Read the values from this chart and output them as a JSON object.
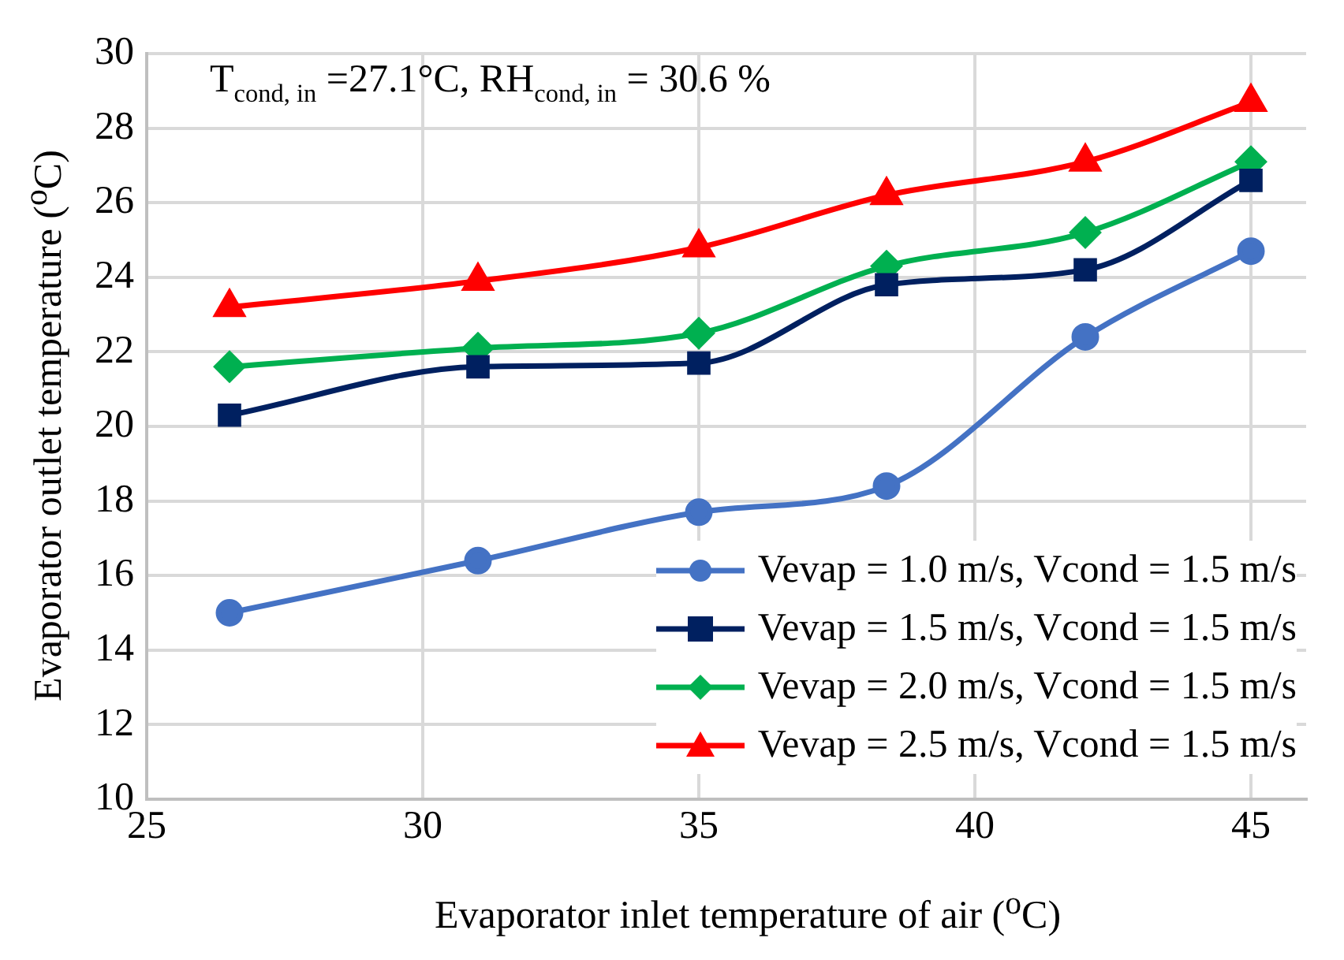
{
  "chart_data": {
    "type": "line",
    "xlabel": "Evaporator inlet temperature of air ($^{o}$C)",
    "ylabel": "Evaporator outlet temperature ($^{o}$C)",
    "annotations": [
      "T$_{cond, in}$ =27.1°C, RH$_{cond, in}$ = 30.6 %"
    ],
    "x": [
      26.5,
      31,
      35,
      38.4,
      42,
      45
    ],
    "series": [
      {
        "name": "Vevap = 1.0 m/s, Vcond = 1.5 m/s",
        "color": "#4472c4",
        "marker": "circle",
        "values": [
          15.0,
          16.4,
          17.7,
          18.4,
          22.4,
          24.7
        ]
      },
      {
        "name": "Vevap = 1.5 m/s, Vcond = 1.5 m/s",
        "color": "#002060",
        "marker": "square",
        "values": [
          20.3,
          21.6,
          21.7,
          23.8,
          24.2,
          26.6
        ]
      },
      {
        "name": "Vevap = 2.0 m/s, Vcond = 1.5 m/s",
        "color": "#00b050",
        "marker": "diamond",
        "values": [
          21.6,
          22.1,
          22.5,
          24.3,
          25.2,
          27.1
        ]
      },
      {
        "name": "Vevap = 2.5 m/s, Vcond = 1.5 m/s",
        "color": "#ff0000",
        "marker": "triangle",
        "values": [
          23.2,
          23.9,
          24.8,
          26.2,
          27.1,
          28.7
        ]
      }
    ],
    "xlim": [
      25,
      46
    ],
    "xticks": [
      25,
      30,
      35,
      40,
      45
    ],
    "ylim": [
      10,
      30
    ],
    "yticks": [
      10,
      12,
      14,
      16,
      18,
      20,
      22,
      24,
      26,
      28,
      30
    ],
    "grid": true,
    "legend": "bottom right",
    "line_style": "solid"
  }
}
